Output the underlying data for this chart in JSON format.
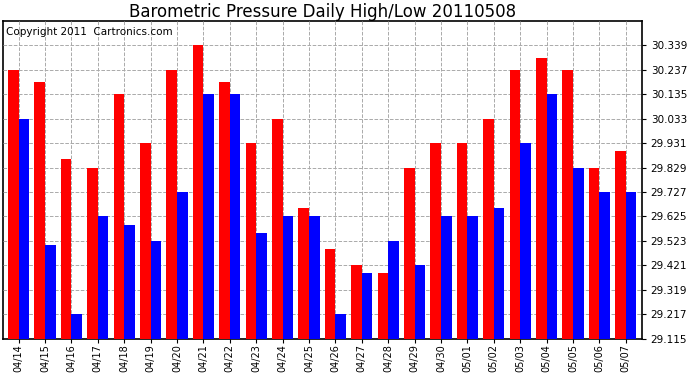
{
  "title": "Barometric Pressure Daily High/Low 20110508",
  "copyright": "Copyright 2011  Cartronics.com",
  "dates": [
    "04/14",
    "04/15",
    "04/16",
    "04/17",
    "04/18",
    "04/19",
    "04/20",
    "04/21",
    "04/22",
    "04/23",
    "04/24",
    "04/25",
    "04/26",
    "04/27",
    "04/28",
    "04/29",
    "04/30",
    "05/01",
    "05/02",
    "05/03",
    "05/04",
    "05/05",
    "05/06",
    "05/07"
  ],
  "highs": [
    30.237,
    30.185,
    29.863,
    29.829,
    30.135,
    29.931,
    30.237,
    30.339,
    30.185,
    29.931,
    30.033,
    29.659,
    29.489,
    29.421,
    29.387,
    29.829,
    29.931,
    29.931,
    30.033,
    30.237,
    30.287,
    30.237,
    29.829,
    29.897
  ],
  "lows": [
    30.033,
    29.507,
    29.217,
    29.625,
    29.591,
    29.523,
    29.727,
    30.135,
    30.135,
    29.557,
    29.625,
    29.625,
    29.217,
    29.387,
    29.523,
    29.421,
    29.625,
    29.625,
    29.659,
    29.931,
    30.135,
    29.829,
    29.727,
    29.727
  ],
  "high_color": "#ff0000",
  "low_color": "#0000ff",
  "background_color": "#ffffff",
  "grid_color": "#aaaaaa",
  "ylim_min": 29.115,
  "ylim_max": 30.441,
  "bar_bottom": 29.115,
  "yticks": [
    29.115,
    29.217,
    29.319,
    29.421,
    29.523,
    29.625,
    29.727,
    29.829,
    29.931,
    30.033,
    30.135,
    30.237,
    30.339
  ],
  "title_fontsize": 12,
  "copyright_fontsize": 7.5
}
